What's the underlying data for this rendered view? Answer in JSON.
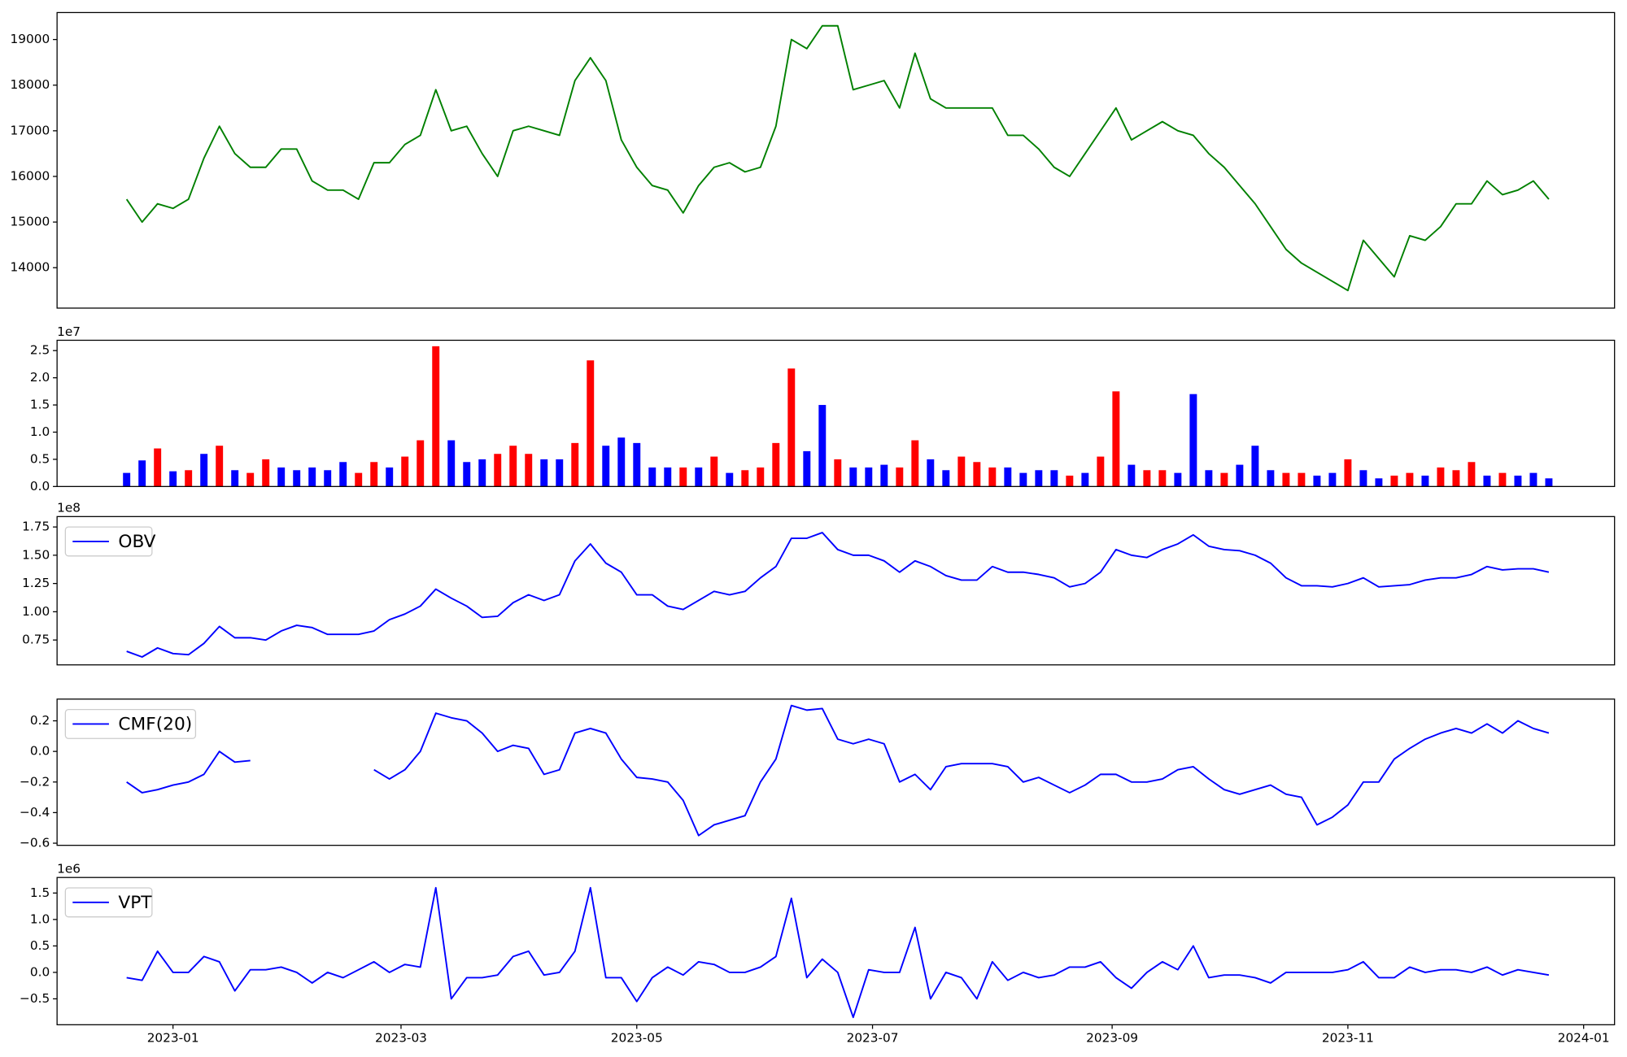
{
  "chart_data": {
    "type": "panels",
    "x": [
      "2022-12-20",
      "2022-12-24",
      "2022-12-28",
      "2023-01-01",
      "2023-01-05",
      "2023-01-09",
      "2023-01-13",
      "2023-01-17",
      "2023-01-21",
      "2023-01-25",
      "2023-01-29",
      "2023-02-02",
      "2023-02-06",
      "2023-02-10",
      "2023-02-14",
      "2023-02-18",
      "2023-02-22",
      "2023-02-26",
      "2023-03-02",
      "2023-03-06",
      "2023-03-10",
      "2023-03-14",
      "2023-03-18",
      "2023-03-22",
      "2023-03-26",
      "2023-03-30",
      "2023-04-03",
      "2023-04-07",
      "2023-04-11",
      "2023-04-15",
      "2023-04-19",
      "2023-04-23",
      "2023-04-27",
      "2023-05-01",
      "2023-05-05",
      "2023-05-09",
      "2023-05-13",
      "2023-05-17",
      "2023-05-21",
      "2023-05-25",
      "2023-05-29",
      "2023-06-02",
      "2023-06-06",
      "2023-06-10",
      "2023-06-14",
      "2023-06-18",
      "2023-06-22",
      "2023-06-26",
      "2023-06-30",
      "2023-07-04",
      "2023-07-08",
      "2023-07-12",
      "2023-07-16",
      "2023-07-20",
      "2023-07-24",
      "2023-07-28",
      "2023-08-01",
      "2023-08-05",
      "2023-08-09",
      "2023-08-13",
      "2023-08-17",
      "2023-08-21",
      "2023-08-25",
      "2023-08-29",
      "2023-09-02",
      "2023-09-06",
      "2023-09-10",
      "2023-09-14",
      "2023-09-18",
      "2023-09-22",
      "2023-09-26",
      "2023-09-30",
      "2023-10-04",
      "2023-10-08",
      "2023-10-12",
      "2023-10-16",
      "2023-10-20",
      "2023-10-24",
      "2023-10-28",
      "2023-11-01",
      "2023-11-05",
      "2023-11-09",
      "2023-11-13",
      "2023-11-17",
      "2023-11-21",
      "2023-11-25",
      "2023-11-29",
      "2023-12-03",
      "2023-12-07",
      "2023-12-11",
      "2023-12-15",
      "2023-12-19",
      "2023-12-23"
    ],
    "xlim": [
      "2022-12-02",
      "2024-01-09"
    ],
    "xticks": [
      {
        "value": "2023-01-01",
        "label": "2023-01"
      },
      {
        "value": "2023-03-01",
        "label": "2023-03"
      },
      {
        "value": "2023-05-01",
        "label": "2023-05"
      },
      {
        "value": "2023-07-01",
        "label": "2023-07"
      },
      {
        "value": "2023-09-01",
        "label": "2023-09"
      },
      {
        "value": "2023-11-01",
        "label": "2023-11"
      },
      {
        "value": "2024-01-01",
        "label": "2024-01"
      }
    ],
    "panels": [
      {
        "type": "line",
        "ylim": [
          13114,
          19591
        ],
        "yticks": [
          14000,
          15000,
          16000,
          17000,
          18000,
          19000
        ],
        "series": [
          {
            "color": "#008000",
            "values": [
              15500,
              15000,
              15400,
              15300,
              15500,
              16400,
              17100,
              16500,
              16200,
              16200,
              16600,
              16600,
              15900,
              15700,
              15700,
              15500,
              16300,
              16300,
              16700,
              16900,
              17900,
              17000,
              17100,
              16500,
              16000,
              17000,
              17100,
              17000,
              16900,
              18100,
              18600,
              18100,
              16800,
              16200,
              15800,
              15700,
              15200,
              15800,
              16200,
              16300,
              16100,
              16200,
              17100,
              19000,
              18800,
              19300,
              19300,
              17900,
              18000,
              18100,
              17500,
              18700,
              17700,
              17500,
              17500,
              17500,
              17500,
              16900,
              16900,
              16600,
              16200,
              16000,
              16500,
              17000,
              17500,
              16800,
              17000,
              17200,
              17000,
              16900,
              16500,
              16200,
              15800,
              15400,
              14900,
              14400,
              14100,
              13900,
              13700,
              13500,
              14600,
              14200,
              13800,
              14700,
              14600,
              14900,
              15400,
              15400,
              15900,
              15600,
              15700,
              15900,
              15500
            ]
          }
        ]
      },
      {
        "type": "bar",
        "ylim": [
          0,
          2.69
        ],
        "offset_label": "1e7",
        "yticks": [
          {
            "value": 0,
            "label": "0.0"
          },
          0.5,
          {
            "value": 1,
            "label": "1.0"
          },
          1.5,
          {
            "value": 2,
            "label": "2.0"
          },
          2.5
        ],
        "series": [
          {
            "values": [
              0.25,
              0.48,
              0.7,
              0.28,
              0.3,
              0.6,
              0.75,
              0.3,
              0.25,
              0.5,
              0.35,
              0.3,
              0.35,
              0.3,
              0.45,
              0.25,
              0.45,
              0.35,
              0.55,
              0.85,
              2.58,
              0.85,
              0.45,
              0.5,
              0.6,
              0.75,
              0.6,
              0.5,
              0.5,
              0.8,
              2.32,
              0.75,
              0.9,
              0.8,
              0.35,
              0.35,
              0.35,
              0.35,
              0.55,
              0.25,
              0.3,
              0.35,
              0.8,
              2.17,
              0.65,
              1.5,
              0.5,
              0.35,
              0.35,
              0.4,
              0.35,
              0.85,
              0.5,
              0.3,
              0.55,
              0.45,
              0.35,
              0.35,
              0.25,
              0.3,
              0.3,
              0.2,
              0.25,
              0.55,
              1.75,
              0.4,
              0.3,
              0.3,
              0.25,
              1.7,
              0.3,
              0.25,
              0.4,
              0.75,
              0.3,
              0.25,
              0.25,
              0.2,
              0.25,
              0.5,
              0.3,
              0.15,
              0.2,
              0.25,
              0.2,
              0.35,
              0.3,
              0.45,
              0.2,
              0.25,
              0.2,
              0.25,
              0.15
            ],
            "colors": [
              "blue",
              "blue",
              "red",
              "blue",
              "red",
              "blue",
              "red",
              "blue",
              "red",
              "red",
              "blue",
              "blue",
              "blue",
              "blue",
              "blue",
              "red",
              "red",
              "blue",
              "red",
              "red",
              "red",
              "blue",
              "blue",
              "blue",
              "red",
              "red",
              "red",
              "blue",
              "blue",
              "red",
              "red",
              "blue",
              "blue",
              "blue",
              "blue",
              "blue",
              "red",
              "blue",
              "red",
              "blue",
              "red",
              "red",
              "red",
              "red",
              "blue",
              "blue",
              "red",
              "blue",
              "blue",
              "blue",
              "red",
              "red",
              "blue",
              "blue",
              "red",
              "red",
              "red",
              "blue",
              "blue",
              "blue",
              "blue",
              "red",
              "blue",
              "red",
              "red",
              "blue",
              "red",
              "red",
              "blue",
              "blue",
              "blue",
              "red",
              "blue",
              "blue",
              "blue",
              "red",
              "red",
              "blue",
              "blue",
              "red",
              "blue",
              "blue",
              "red",
              "red",
              "blue",
              "red",
              "red",
              "red",
              "blue",
              "red",
              "blue",
              "blue",
              "blue"
            ]
          }
        ]
      },
      {
        "type": "line",
        "ylim": [
          0.53,
          1.842
        ],
        "offset_label": "1e8",
        "legend": "upper left",
        "yticks": [
          0.75,
          {
            "value": 1,
            "label": "1.00"
          },
          1.25,
          {
            "value": 1.5,
            "label": "1.50"
          },
          1.75
        ],
        "series": [
          {
            "name": "OBV",
            "color": "#0000ff",
            "values": [
              0.65,
              0.6,
              0.68,
              0.63,
              0.62,
              0.72,
              0.87,
              0.77,
              0.77,
              0.75,
              0.83,
              0.88,
              0.86,
              0.8,
              0.8,
              0.8,
              0.83,
              0.93,
              0.98,
              1.05,
              1.2,
              1.12,
              1.05,
              0.95,
              0.96,
              1.08,
              1.15,
              1.1,
              1.15,
              1.45,
              1.6,
              1.43,
              1.35,
              1.15,
              1.15,
              1.05,
              1.02,
              1.1,
              1.18,
              1.15,
              1.18,
              1.3,
              1.4,
              1.65,
              1.65,
              1.7,
              1.55,
              1.5,
              1.5,
              1.45,
              1.35,
              1.45,
              1.4,
              1.32,
              1.28,
              1.28,
              1.4,
              1.35,
              1.35,
              1.33,
              1.3,
              1.22,
              1.25,
              1.35,
              1.55,
              1.5,
              1.48,
              1.55,
              1.6,
              1.68,
              1.58,
              1.55,
              1.54,
              1.5,
              1.43,
              1.3,
              1.23,
              1.23,
              1.22,
              1.25,
              1.3,
              1.22,
              1.23,
              1.24,
              1.28,
              1.3,
              1.3,
              1.33,
              1.4,
              1.37,
              1.38,
              1.38,
              1.35
            ]
          }
        ]
      },
      {
        "type": "line",
        "ylim": [
          -0.614,
          0.342
        ],
        "legend": "upper left",
        "yticks": [
          {
            "value": -0.6,
            "label": "−0.6"
          },
          {
            "value": -0.4,
            "label": "−0.4"
          },
          {
            "value": -0.2,
            "label": "−0.2"
          },
          {
            "value": 0,
            "label": "0.0"
          },
          0.2
        ],
        "series": [
          {
            "name": "CMF(20)",
            "color": "#0000ff",
            "values": [
              -0.2,
              -0.27,
              -0.25,
              -0.22,
              -0.2,
              -0.15,
              0.0,
              -0.07,
              -0.06,
              null,
              null,
              null,
              null,
              null,
              null,
              null,
              -0.12,
              -0.18,
              -0.12,
              0.0,
              0.25,
              0.22,
              0.2,
              0.12,
              0.0,
              0.04,
              0.02,
              -0.15,
              -0.12,
              0.12,
              0.15,
              0.12,
              -0.05,
              -0.17,
              -0.18,
              -0.2,
              -0.32,
              -0.55,
              -0.48,
              -0.45,
              -0.42,
              -0.2,
              -0.05,
              0.3,
              0.27,
              0.28,
              0.08,
              0.05,
              0.08,
              0.05,
              -0.2,
              -0.15,
              -0.25,
              -0.1,
              -0.08,
              -0.08,
              -0.08,
              -0.1,
              -0.2,
              -0.17,
              -0.22,
              -0.27,
              -0.22,
              -0.15,
              -0.15,
              -0.2,
              -0.2,
              -0.18,
              -0.12,
              -0.1,
              -0.18,
              -0.25,
              -0.28,
              -0.25,
              -0.22,
              -0.28,
              -0.3,
              -0.48,
              -0.43,
              -0.35,
              -0.2,
              -0.2,
              -0.05,
              0.02,
              0.08,
              0.12,
              0.15,
              0.12,
              0.18,
              0.12,
              0.2,
              0.15,
              0.12
            ]
          }
        ]
      },
      {
        "type": "line",
        "ylim": [
          -0.99,
          1.794
        ],
        "offset_label": "1e6",
        "legend": "upper left",
        "yticks": [
          {
            "value": -0.5,
            "label": "−0.5"
          },
          {
            "value": 0,
            "label": "0.0"
          },
          0.5,
          {
            "value": 1,
            "label": "1.0"
          },
          1.5
        ],
        "series": [
          {
            "name": "VPT",
            "color": "#0000ff",
            "values": [
              -0.1,
              -0.15,
              0.4,
              0.0,
              0.0,
              0.3,
              0.2,
              -0.35,
              0.05,
              0.05,
              0.1,
              0.0,
              -0.2,
              0.0,
              -0.1,
              0.05,
              0.2,
              0.0,
              0.15,
              0.1,
              1.6,
              -0.5,
              -0.1,
              -0.1,
              -0.05,
              0.3,
              0.4,
              -0.05,
              0.0,
              0.4,
              1.6,
              -0.1,
              -0.1,
              -0.55,
              -0.1,
              0.1,
              -0.05,
              0.2,
              0.15,
              0.0,
              0.0,
              0.1,
              0.3,
              1.4,
              -0.1,
              0.25,
              0.0,
              -0.85,
              0.05,
              0.0,
              0.0,
              0.85,
              -0.5,
              0.0,
              -0.1,
              -0.5,
              0.2,
              -0.15,
              0.0,
              -0.1,
              -0.05,
              0.1,
              0.1,
              0.2,
              -0.1,
              -0.3,
              0.0,
              0.2,
              0.05,
              0.5,
              -0.1,
              -0.05,
              -0.05,
              -0.1,
              -0.2,
              0.0,
              0.0,
              0.0,
              0.0,
              0.05,
              0.2,
              -0.1,
              -0.1,
              0.1,
              0.0,
              0.05,
              0.05,
              0.0,
              0.1,
              -0.05,
              0.05,
              0.0,
              -0.05
            ]
          }
        ]
      }
    ]
  }
}
